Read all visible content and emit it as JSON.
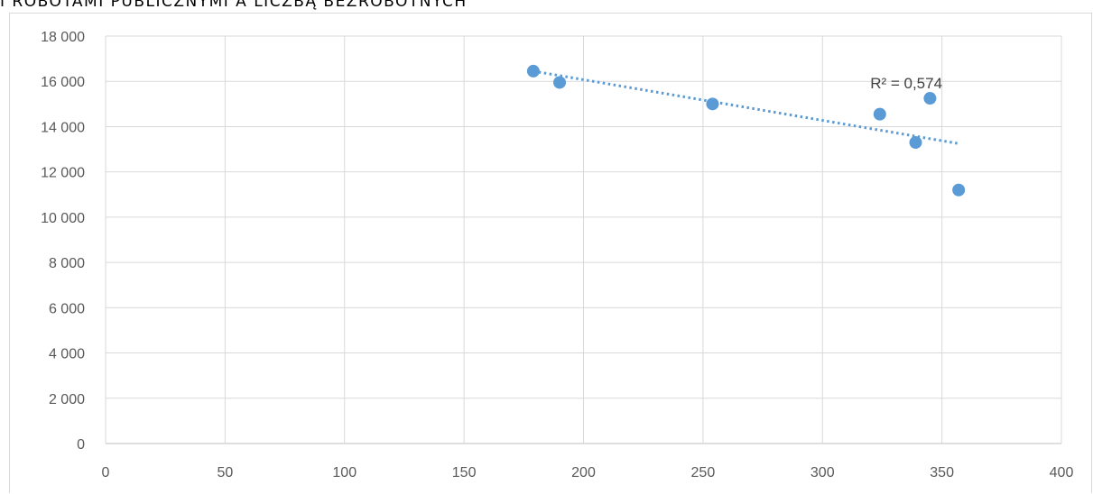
{
  "chart_data": {
    "type": "scatter",
    "title": "I ROBOTAMI PUBLICZNYMI A LICZBĄ BEZROBOTNYCH",
    "xlabel": "",
    "ylabel": "",
    "xlim": [
      0,
      400
    ],
    "ylim": [
      0,
      18000
    ],
    "x_ticks": [
      0,
      50,
      100,
      150,
      200,
      250,
      300,
      350,
      400
    ],
    "y_ticks": [
      0,
      2000,
      4000,
      6000,
      8000,
      10000,
      12000,
      14000,
      16000,
      18000
    ],
    "x_tick_labels": [
      "0",
      "50",
      "100",
      "150",
      "200",
      "250",
      "300",
      "350",
      "400"
    ],
    "y_tick_labels": [
      "0",
      "2 000",
      "4 000",
      "6 000",
      "8 000",
      "10 000",
      "12 000",
      "14 000",
      "16 000",
      "18 000"
    ],
    "grid": true,
    "legend": "none",
    "series": [
      {
        "points": [
          {
            "x": 179,
            "y": 16450
          },
          {
            "x": 190,
            "y": 15950
          },
          {
            "x": 254,
            "y": 15000
          },
          {
            "x": 324,
            "y": 14550
          },
          {
            "x": 339,
            "y": 13300
          },
          {
            "x": 345,
            "y": 15250
          },
          {
            "x": 357,
            "y": 11200
          }
        ],
        "color": "#5b9bd5"
      }
    ],
    "trendline": {
      "type": "linear",
      "x_range": [
        179,
        357
      ],
      "y_range": [
        16450,
        13250
      ],
      "color": "#5b9bd5",
      "style": "dotted",
      "r_squared_label": "R² = 0,574"
    }
  }
}
